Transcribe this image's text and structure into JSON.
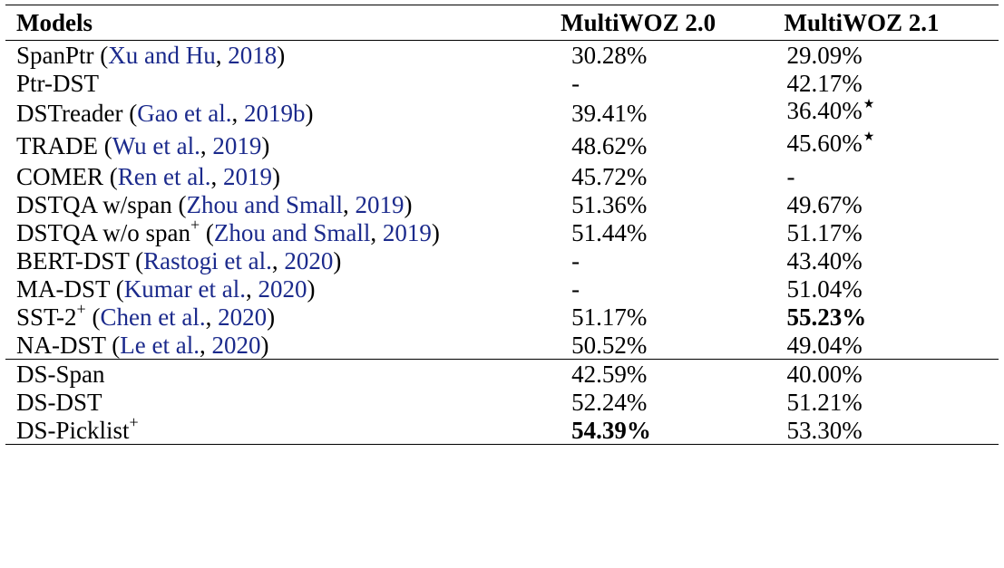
{
  "header": {
    "models": "Models",
    "col_a": "MultiWOZ 2.0",
    "col_b": "MultiWOZ 2.1"
  },
  "rows": [
    {
      "name": "SpanPtr",
      "plus": false,
      "cite": "Xu and Hu",
      "year": "2018",
      "a": "30.28%",
      "b": "29.09%",
      "a_bold": false,
      "b_bold": false,
      "a_star": false,
      "b_star": false
    },
    {
      "name": "Ptr-DST",
      "plus": false,
      "cite": "",
      "year": "",
      "a": "-",
      "b": "42.17%",
      "a_bold": false,
      "b_bold": false,
      "a_star": false,
      "b_star": false
    },
    {
      "name": "DSTreader",
      "plus": false,
      "cite": "Gao et al.",
      "year": "2019b",
      "a": "39.41%",
      "b": "36.40%",
      "a_bold": false,
      "b_bold": false,
      "a_star": false,
      "b_star": true
    },
    {
      "name": "TRADE",
      "plus": false,
      "cite": "Wu et al.",
      "year": "2019",
      "a": "48.62%",
      "b": "45.60%",
      "a_bold": false,
      "b_bold": false,
      "a_star": false,
      "b_star": true
    },
    {
      "name": "COMER",
      "plus": false,
      "cite": "Ren et al.",
      "year": "2019",
      "a": "45.72%",
      "b": "-",
      "a_bold": false,
      "b_bold": false,
      "a_star": false,
      "b_star": false
    },
    {
      "name": "DSTQA w/span",
      "plus": false,
      "cite": "Zhou and Small",
      "year": "2019",
      "a": "51.36%",
      "b": "49.67%",
      "a_bold": false,
      "b_bold": false,
      "a_star": false,
      "b_star": false
    },
    {
      "name": "DSTQA w/o span",
      "plus": true,
      "cite": "Zhou and Small",
      "year": "2019",
      "a": "51.44%",
      "b": "51.17%",
      "a_bold": false,
      "b_bold": false,
      "a_star": false,
      "b_star": false
    },
    {
      "name": "BERT-DST",
      "plus": false,
      "cite": "Rastogi et al.",
      "year": "2020",
      "a": "-",
      "b": "43.40%",
      "a_bold": false,
      "b_bold": false,
      "a_star": false,
      "b_star": false
    },
    {
      "name": "MA-DST",
      "plus": false,
      "cite": "Kumar et al.",
      "year": "2020",
      "a": "-",
      "b": "51.04%",
      "a_bold": false,
      "b_bold": false,
      "a_star": false,
      "b_star": false
    },
    {
      "name": "SST-2",
      "plus": true,
      "cite": "Chen et al.",
      "year": "2020",
      "a": "51.17%",
      "b": "55.23%",
      "a_bold": false,
      "b_bold": true,
      "a_star": false,
      "b_star": false
    },
    {
      "name": "NA-DST",
      "plus": false,
      "cite": "Le et al.",
      "year": "2020",
      "a": "50.52%",
      "b": "49.04%",
      "a_bold": false,
      "b_bold": false,
      "a_star": false,
      "b_star": false
    },
    {
      "name": "DS-Span",
      "plus": false,
      "cite": "",
      "year": "",
      "a": "42.59%",
      "b": "40.00%",
      "a_bold": false,
      "b_bold": false,
      "a_star": false,
      "b_star": false,
      "group_start": true
    },
    {
      "name": "DS-DST",
      "plus": false,
      "cite": "",
      "year": "",
      "a": "52.24%",
      "b": "51.21%",
      "a_bold": false,
      "b_bold": false,
      "a_star": false,
      "b_star": false
    },
    {
      "name": "DS-Picklist",
      "plus": true,
      "cite": "",
      "year": "",
      "a": "54.39%",
      "b": "53.30%",
      "a_bold": true,
      "b_bold": false,
      "a_star": false,
      "b_star": false
    }
  ],
  "markers": {
    "plus": "+",
    "star": "★",
    "open_paren": "(",
    "close_paren": ")",
    "comma": ", "
  }
}
